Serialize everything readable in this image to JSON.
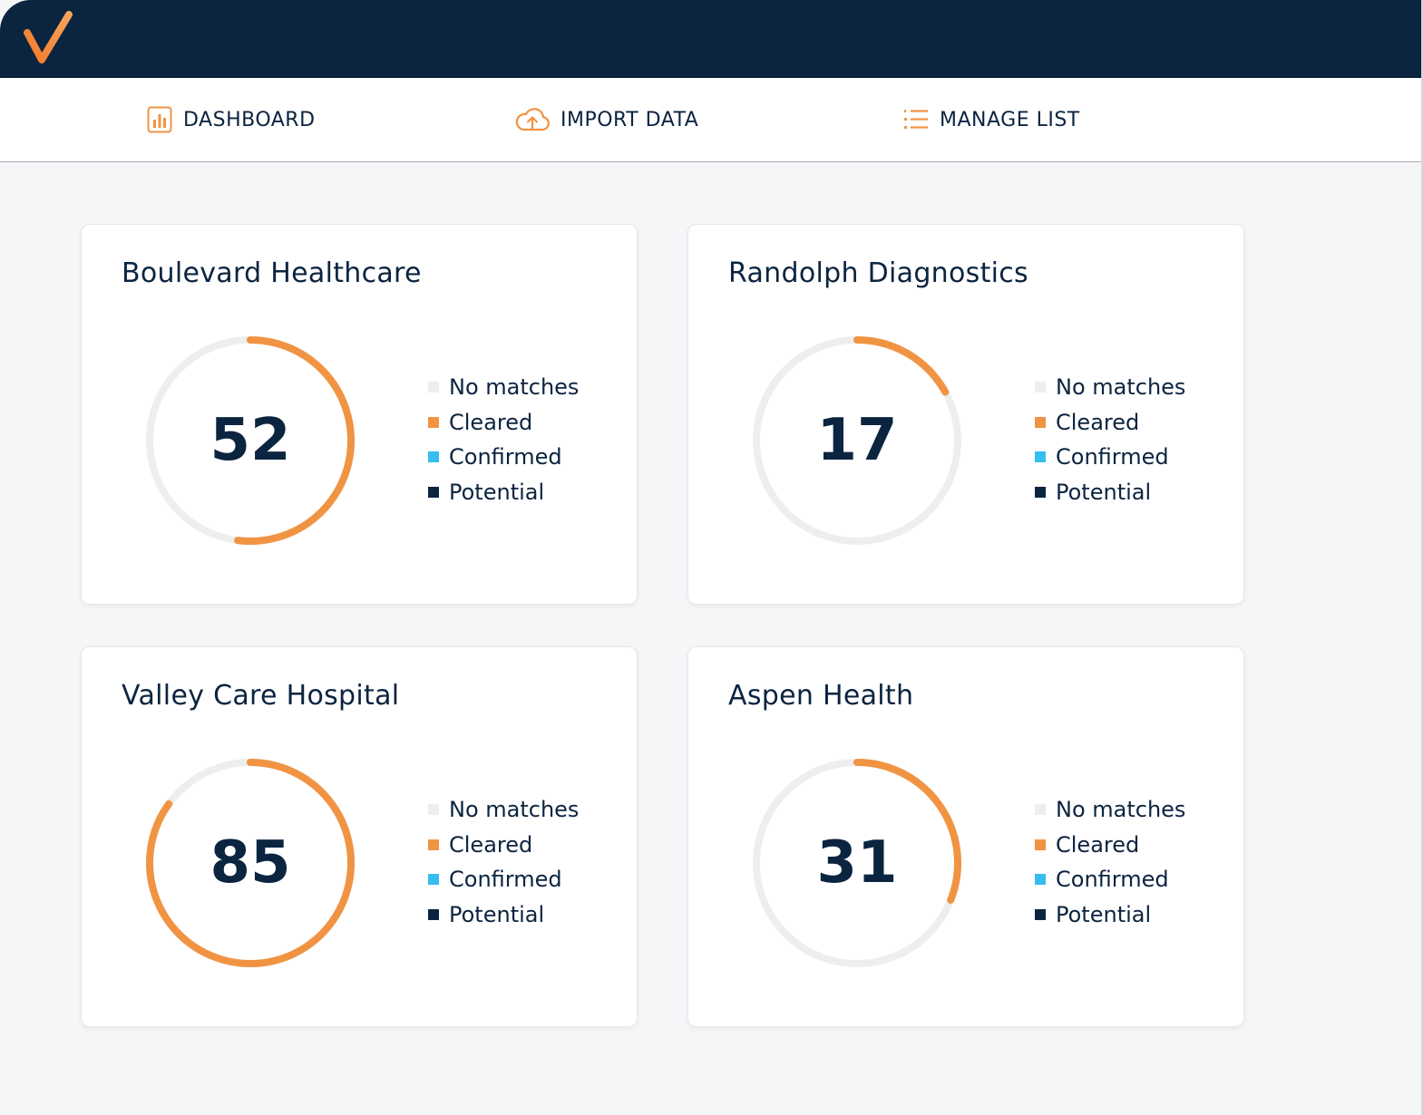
{
  "nav": {
    "dashboard": "DASHBOARD",
    "import": "IMPORT DATA",
    "manage": "MANAGE LIST"
  },
  "colors": {
    "header": "#0b2440",
    "accent": "#f09443",
    "track": "#eeeeee",
    "no_matches": "#eeeeee",
    "cleared": "#f09443",
    "confirmed": "#35bdf0",
    "potential": "#0b2440"
  },
  "legend": [
    "No matches",
    "Cleared",
    "Confirmed",
    "Potential"
  ],
  "cards": [
    {
      "name": "Boulevard Healthcare",
      "value": "52",
      "progress": 0.52
    },
    {
      "name": "Randolph Diagnostics",
      "value": "17",
      "progress": 0.17
    },
    {
      "name": "Valley Care Hospital",
      "value": "85",
      "progress": 0.85
    },
    {
      "name": "Aspen Health",
      "value": "31",
      "progress": 0.31
    }
  ]
}
